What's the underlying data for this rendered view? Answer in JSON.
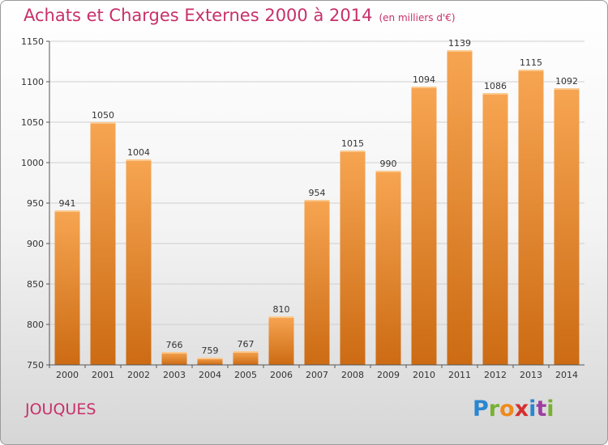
{
  "title": "Achats et Charges Externes 2000 à 2014",
  "subtitle": "(en milliers d'€)",
  "town": "JOUQUES",
  "logo": "Proxiti",
  "colors": {
    "title": "#c8306a",
    "bar_top": "#f7a552",
    "bar_bottom": "#cc6b13"
  },
  "chart_data": {
    "type": "bar",
    "title": "Achats et Charges Externes 2000 à 2014",
    "subtitle": "(en milliers d'€)",
    "categories": [
      "2000",
      "2001",
      "2002",
      "2003",
      "2004",
      "2005",
      "2006",
      "2007",
      "2008",
      "2009",
      "2010",
      "2011",
      "2012",
      "2013",
      "2014"
    ],
    "values": [
      941,
      1050,
      1004,
      766,
      759,
      767,
      810,
      954,
      1015,
      990,
      1094,
      1139,
      1086,
      1115,
      1092
    ],
    "ylim": [
      750,
      1150
    ],
    "yticks": [
      750,
      800,
      850,
      900,
      950,
      1000,
      1050,
      1100,
      1150
    ],
    "grid": true,
    "legend": "none"
  }
}
